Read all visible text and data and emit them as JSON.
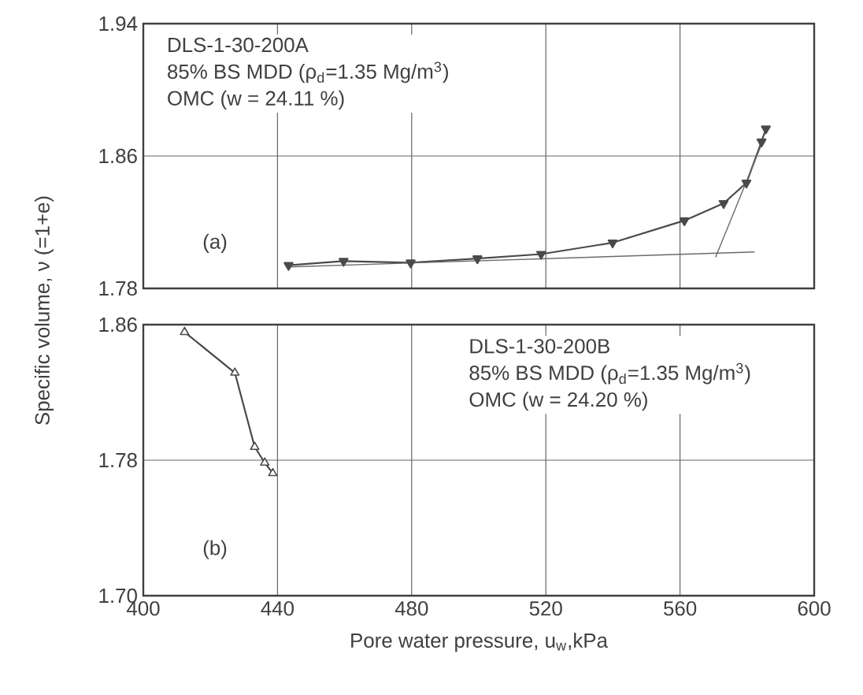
{
  "chart_data": [
    {
      "type": "line",
      "xlim": [
        400,
        600
      ],
      "ylim": [
        1.78,
        1.94
      ],
      "xticks": [
        400,
        440,
        480,
        520,
        560,
        600
      ],
      "yticks": [
        1.78,
        1.86,
        1.94
      ],
      "tick_labels": "y",
      "grid": true,
      "marker": "triangle",
      "ylabel": "Specific volume, ν (=1+e)",
      "annotations": [
        "DLS-1-30-200A",
        "85% BS MDD (ρ$_{d}$=1.35 Mg/m$^{3}$)",
        "OMC (w  =  24.11 %)",
        "(a)"
      ],
      "series": [
        {
          "color": "#4a4a4a",
          "x": [
            443.3,
            459.7,
            479.7,
            499.6,
            518.6,
            539.9,
            561.3,
            573,
            579.8,
            584.3,
            585.6
          ],
          "values": [
            1.794,
            1.7965,
            1.7955,
            1.798,
            1.8007,
            1.8076,
            1.821,
            1.8314,
            1.8438,
            1.8686,
            1.8765
          ]
        },
        {
          "type": "line",
          "marker": "none",
          "color": "#6a6a6a",
          "x": [
            443.3,
            582.2
          ],
          "values": [
            1.793,
            1.802
          ]
        },
        {
          "type": "line",
          "marker": "none",
          "color": "#6a6a6a",
          "x": [
            570.6,
            584.3
          ],
          "values": [
            1.7988,
            1.867
          ]
        }
      ]
    },
    {
      "type": "line",
      "xlim": [
        400,
        600
      ],
      "ylim": [
        1.7,
        1.86
      ],
      "xticks": [
        400,
        440,
        480,
        520,
        560,
        600
      ],
      "yticks": [
        {
          "value": 1.7,
          "label": "1.70"
        },
        1.78,
        1.86
      ],
      "grid": true,
      "marker": "triangle",
      "xlabel": "Pore water pressure, u$_{w}$,kPa",
      "annotations": [
        "DLS-1-30-200B",
        "85% BS MDD (ρ$_{d}$=1.35 Mg/m$^{3}$)",
        "OMC (w  =  24.20 %)",
        "(b)"
      ],
      "series": [
        {
          "color": "#4a4a4a",
          "x": [
            412.3,
            427.3,
            433.2,
            436.2,
            438.6
          ],
          "values": [
            1.8556,
            1.8316,
            1.7878,
            1.7785,
            1.7723
          ]
        }
      ]
    }
  ]
}
